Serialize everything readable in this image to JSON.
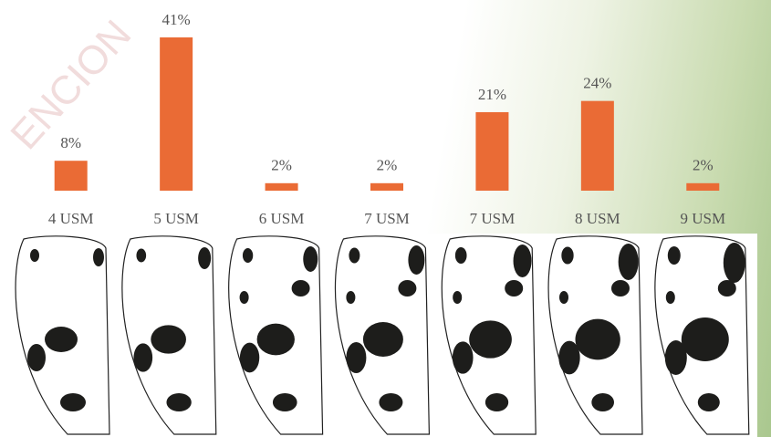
{
  "chart_data": {
    "type": "bar",
    "watermark": "ENCION",
    "categories": [
      "4 USM",
      "5 USM",
      "6 USM",
      "7 USM",
      "7 USM",
      "8 USM",
      "9 USM"
    ],
    "values": [
      8,
      41,
      2,
      2,
      21,
      24,
      2
    ],
    "value_labels": [
      "8%",
      "41%",
      "2%",
      "2%",
      "21%",
      "24%",
      "2%"
    ],
    "color": "#ea6b35",
    "ylim": [
      0,
      45
    ]
  }
}
